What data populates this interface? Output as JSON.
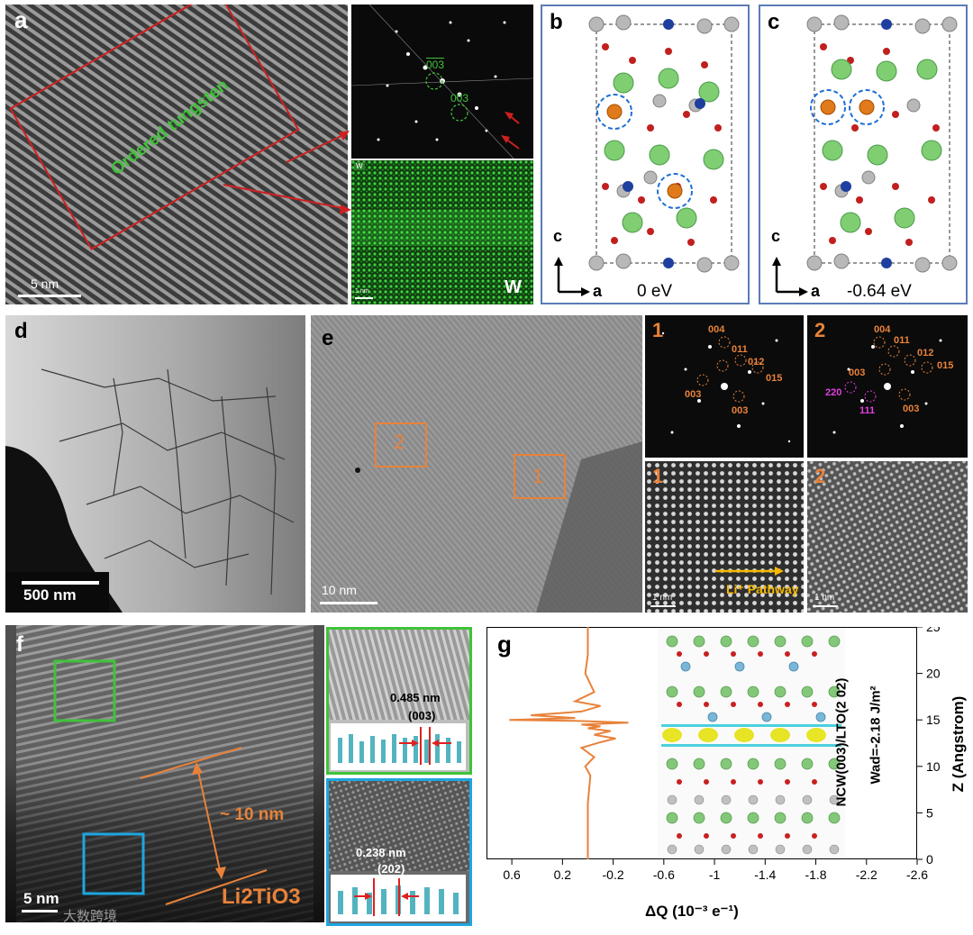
{
  "colors": {
    "accent_orange": "#e8823a",
    "accent_green": "#3fc33a",
    "accent_blue": "#1ea6e0",
    "box_red": "#d02020",
    "panel_border": "#5b7cb6"
  },
  "panel_a": {
    "label": "a",
    "annotation": "Ordered tungsten",
    "scale": "5 nm",
    "fft_spot_1": "003",
    "fft_spot_2": "003",
    "eds_tag": "W",
    "eds_label": "W",
    "eds_scale": "1 nm"
  },
  "panel_b": {
    "label": "b",
    "axis_c": "c",
    "axis_a": "a",
    "energy": "0 eV"
  },
  "panel_c": {
    "label": "c",
    "axis_c": "c",
    "axis_a": "a",
    "energy": "-0.64 eV"
  },
  "panel_d": {
    "label": "d",
    "scale": "500 nm"
  },
  "panel_e": {
    "label": "e",
    "scale": "10 nm",
    "box_1": "1",
    "box_2": "2",
    "fft1": {
      "tag": "1",
      "spots": [
        "004",
        "011",
        "012",
        "015",
        "003",
        "003"
      ]
    },
    "fft2": {
      "tag": "2",
      "spots": [
        "004",
        "011",
        "012",
        "015",
        "003",
        "220",
        "111",
        "003"
      ]
    },
    "hr1": {
      "tag": "1",
      "scale": "1 nm",
      "pathway": "Li⁺ Pathway"
    },
    "hr2": {
      "tag": "2",
      "scale": "1 nm"
    }
  },
  "panel_f": {
    "label": "f",
    "scale": "5 nm",
    "thickness": "~ 10 nm",
    "phase": "Li2TiO3",
    "inset_green": {
      "spacing": "0.485 nm",
      "plane": "(003)"
    },
    "inset_blue": {
      "spacing": "0.238 nm",
      "plane": "(202)"
    },
    "watermark": "大数跨境"
  },
  "panel_g": {
    "label": "g",
    "interface": "NCW(003)/LTO(2 02)",
    "wad": "Wad=-2.18 J/m²",
    "xlabel": "ΔQ (10⁻³ e⁻¹)",
    "ylabel": "Z (Angstrom)",
    "xticks": [
      "0.6",
      "0.2",
      "-0.2",
      "-0.6",
      "-1",
      "-1.4",
      "-1.8",
      "-2.2",
      "-2.6"
    ],
    "yticks": [
      "0",
      "5",
      "10",
      "15",
      "20",
      "25"
    ]
  },
  "chart_data": {
    "type": "line",
    "title": "",
    "xlabel": "ΔQ (10⁻³ e⁻¹)",
    "ylabel": "Z (Angstrom)",
    "xlim": [
      0.8,
      -2.6
    ],
    "ylim": [
      0,
      25
    ],
    "grid": false,
    "series": [
      {
        "x": [
          0.0,
          0.0,
          -0.02,
          0.02,
          -0.05,
          0.05,
          -0.1,
          -0.22,
          -0.05,
          -0.18,
          0.0,
          -0.1,
          0.05,
          -0.32,
          0.1,
          0.62,
          0.1,
          0.45,
          0.05,
          -0.1,
          0.1,
          -0.05,
          0.02,
          0.0,
          0.0
        ],
        "y": [
          0,
          6,
          9,
          10,
          11,
          12,
          12.6,
          13,
          13.4,
          13.8,
          14.1,
          14.3,
          14.5,
          14.7,
          14.9,
          15.0,
          15.2,
          15.5,
          15.9,
          16.5,
          17,
          18,
          20,
          22,
          25
        ]
      }
    ]
  }
}
